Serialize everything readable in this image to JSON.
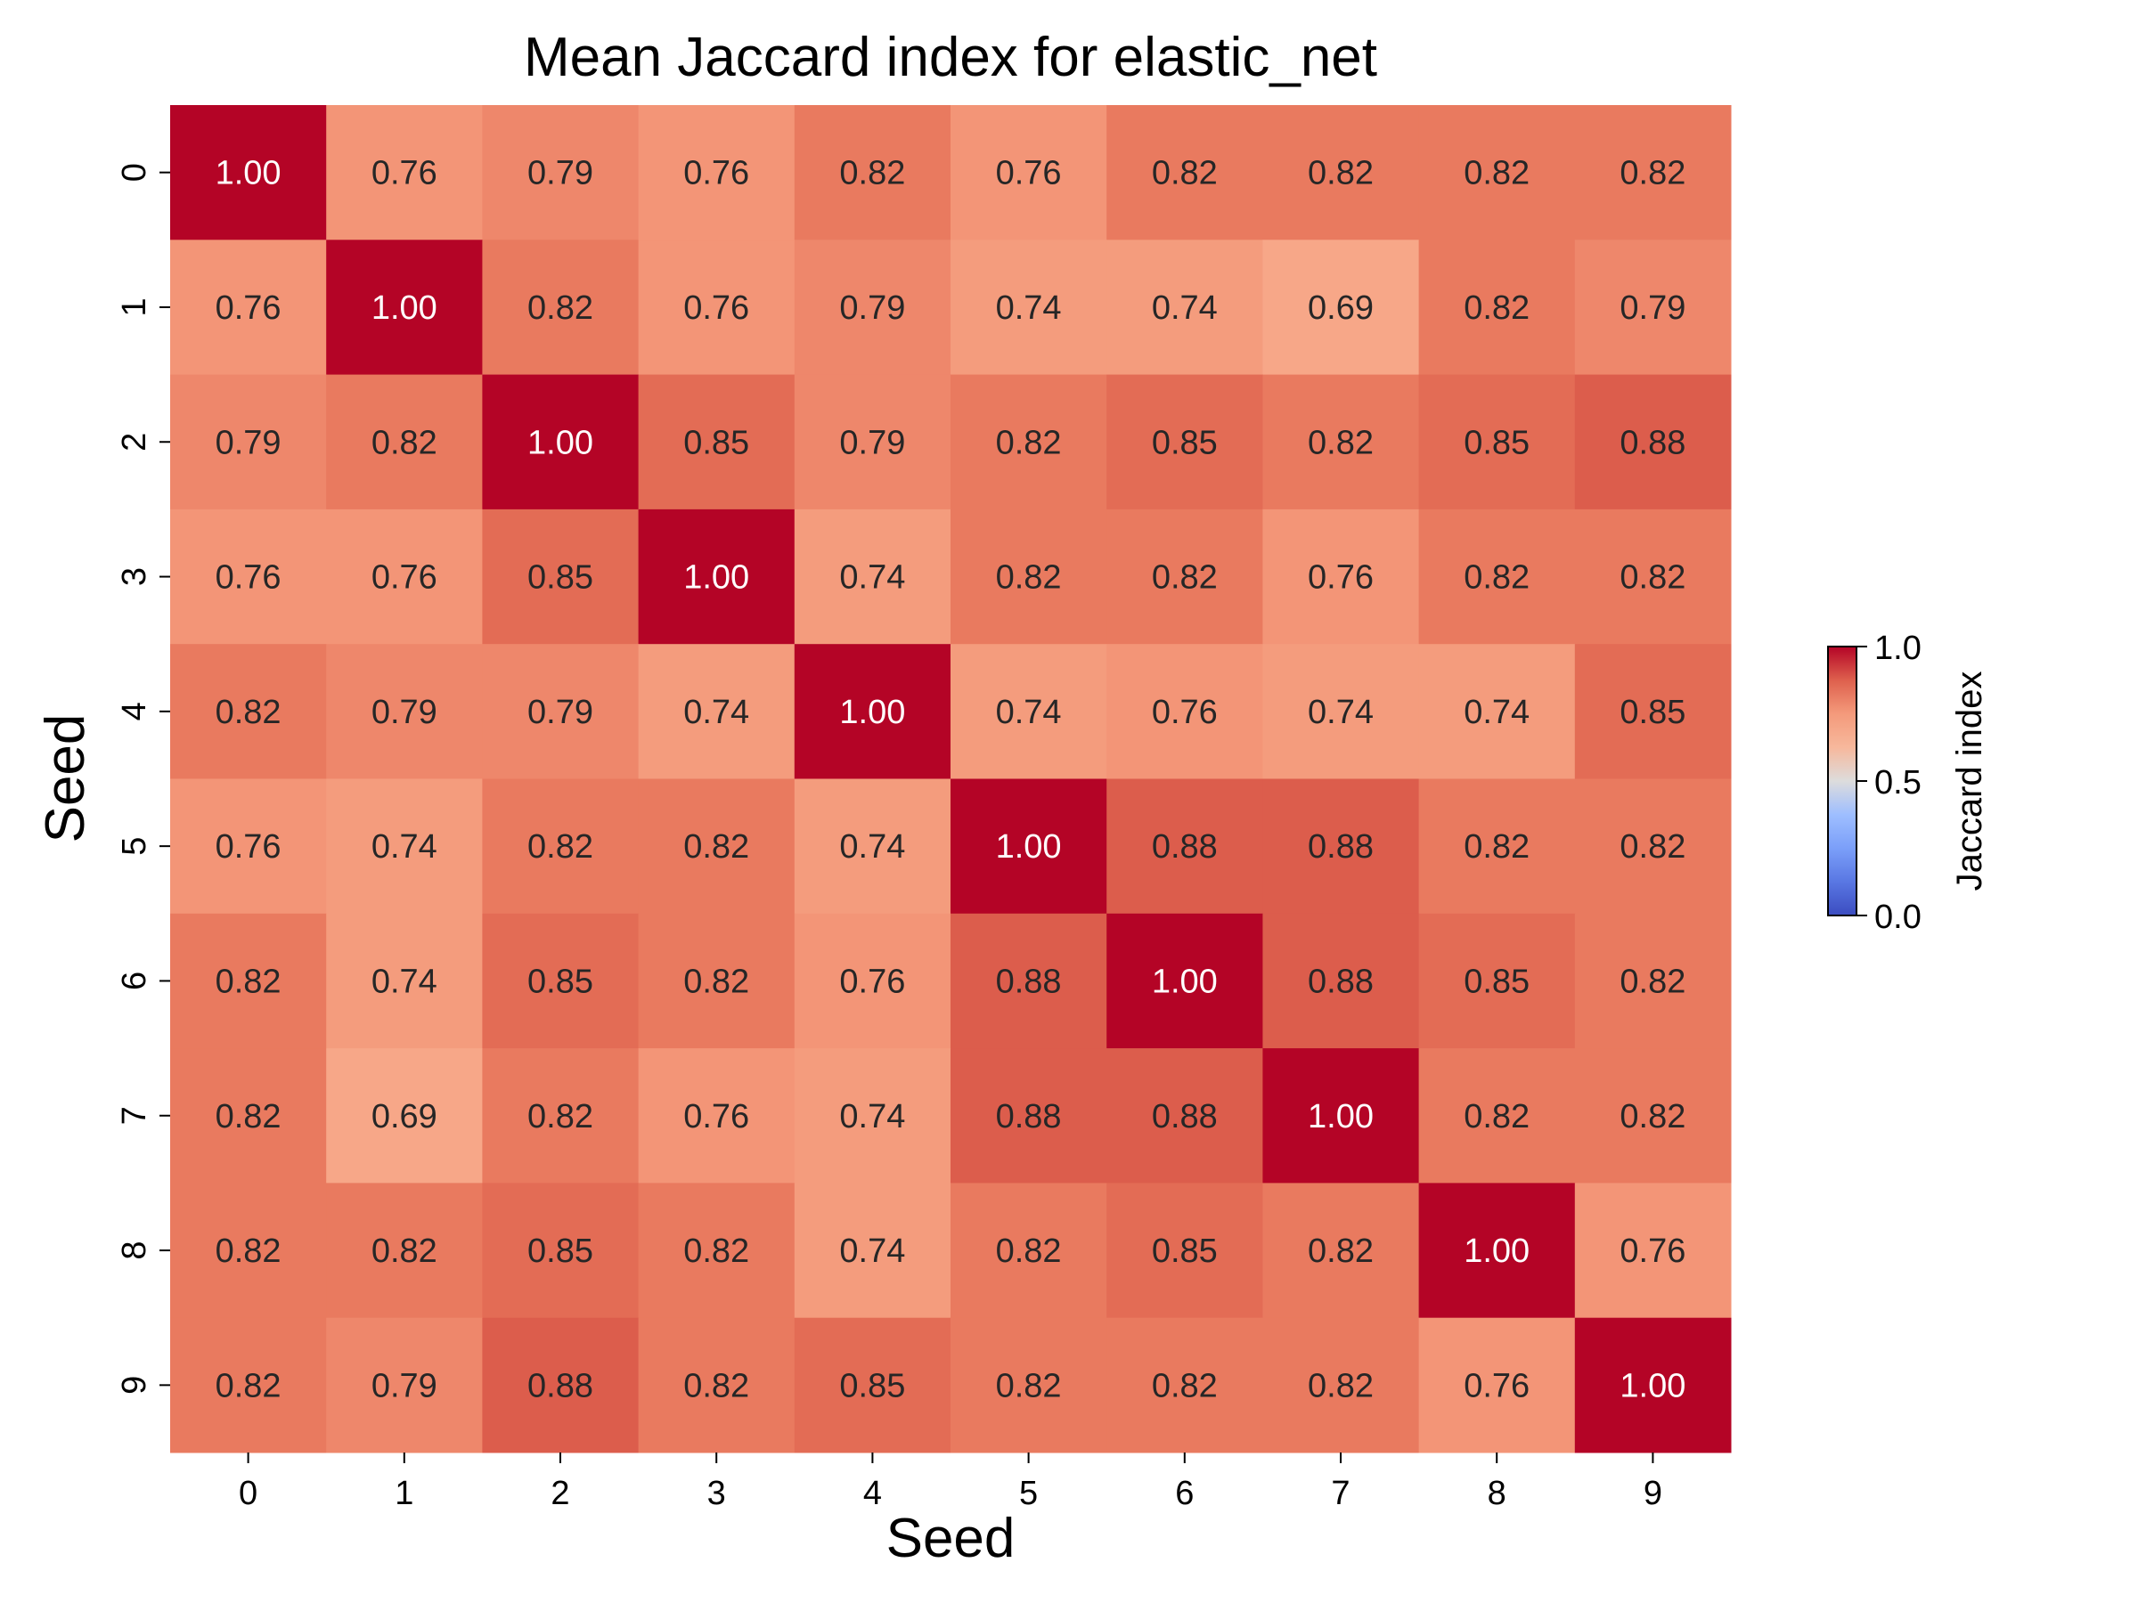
{
  "chart_data": {
    "type": "heatmap",
    "title": "Mean Jaccard index for elastic_net",
    "xlabel": "Seed",
    "ylabel": "Seed",
    "x_categories": [
      "0",
      "1",
      "2",
      "3",
      "4",
      "5",
      "6",
      "7",
      "8",
      "9"
    ],
    "y_categories": [
      "0",
      "1",
      "2",
      "3",
      "4",
      "5",
      "6",
      "7",
      "8",
      "9"
    ],
    "values": [
      [
        1.0,
        0.76,
        0.79,
        0.76,
        0.82,
        0.76,
        0.82,
        0.82,
        0.82,
        0.82
      ],
      [
        0.76,
        1.0,
        0.82,
        0.76,
        0.79,
        0.74,
        0.74,
        0.69,
        0.82,
        0.79
      ],
      [
        0.79,
        0.82,
        1.0,
        0.85,
        0.79,
        0.82,
        0.85,
        0.82,
        0.85,
        0.88
      ],
      [
        0.76,
        0.76,
        0.85,
        1.0,
        0.74,
        0.82,
        0.82,
        0.76,
        0.82,
        0.82
      ],
      [
        0.82,
        0.79,
        0.79,
        0.74,
        1.0,
        0.74,
        0.76,
        0.74,
        0.74,
        0.85
      ],
      [
        0.76,
        0.74,
        0.82,
        0.82,
        0.74,
        1.0,
        0.88,
        0.88,
        0.82,
        0.82
      ],
      [
        0.82,
        0.74,
        0.85,
        0.82,
        0.76,
        0.88,
        1.0,
        0.88,
        0.85,
        0.82
      ],
      [
        0.82,
        0.69,
        0.82,
        0.76,
        0.74,
        0.88,
        0.88,
        1.0,
        0.82,
        0.82
      ],
      [
        0.82,
        0.82,
        0.85,
        0.82,
        0.74,
        0.82,
        0.85,
        0.82,
        1.0,
        0.76
      ],
      [
        0.82,
        0.79,
        0.88,
        0.82,
        0.85,
        0.82,
        0.82,
        0.82,
        0.76,
        1.0
      ]
    ],
    "value_format": "2 decimals",
    "colormap": "coolwarm",
    "vmin": 0.0,
    "vmax": 1.0,
    "colorbar": {
      "label": "Jaccard index",
      "ticks": [
        "0.0",
        "0.5",
        "1.0"
      ],
      "placement": "right"
    },
    "grid": false
  }
}
